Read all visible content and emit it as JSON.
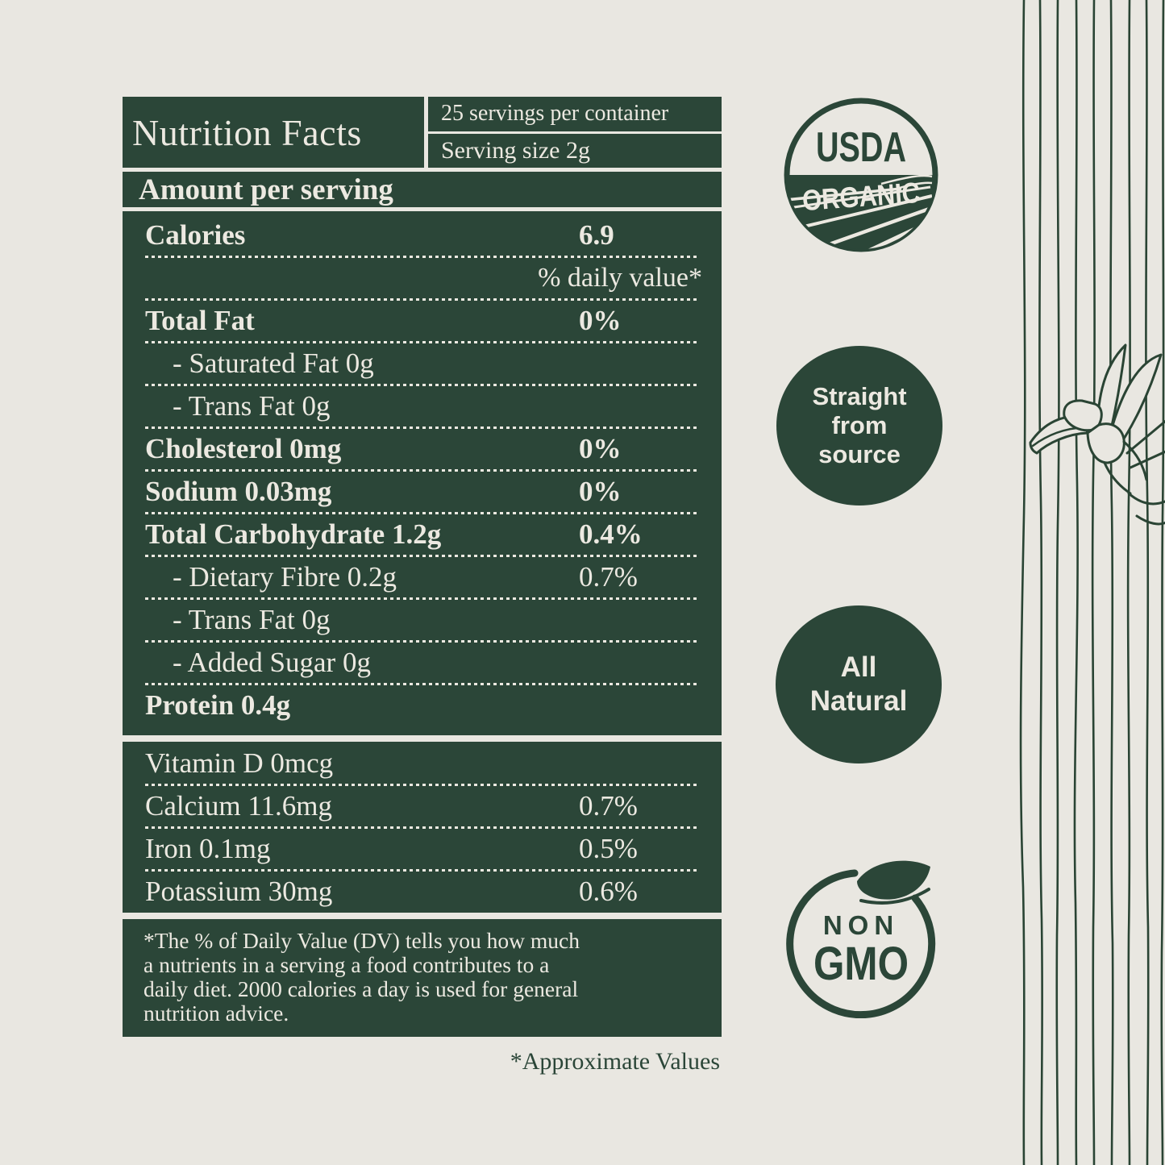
{
  "colors": {
    "panel_green": "#2b4638",
    "page_background": "#e9e7e1",
    "text_cream": "#ece9e1",
    "line_art": "#2a4434"
  },
  "panel": {
    "title": "Nutrition Facts",
    "servings_per_container": "25 servings per container",
    "serving_size": "Serving size 2g",
    "amount_per_serving": "Amount per serving",
    "calories_label": "Calories",
    "calories_value": "6.9",
    "daily_value_header": "% daily value*",
    "rows": [
      {
        "label": "Total Fat",
        "value": "0%",
        "bold": true
      },
      {
        "label": "- Saturated Fat 0g",
        "value": "",
        "indent": true
      },
      {
        "label": "- Trans Fat 0g",
        "value": "",
        "indent": true
      },
      {
        "label": "Cholesterol 0mg",
        "value": "0%",
        "bold": true
      },
      {
        "label": "Sodium 0.03mg",
        "value": "0%",
        "bold": true
      },
      {
        "label": "Total Carbohydrate 1.2g",
        "value": "0.4%",
        "bold": true
      },
      {
        "label": "- Dietary Fibre 0.2g",
        "value": "0.7%",
        "indent": true
      },
      {
        "label": "- Trans Fat 0g",
        "value": "",
        "indent": true
      },
      {
        "label": "- Added Sugar 0g",
        "value": "",
        "indent": true
      },
      {
        "label": "Protein 0.4g",
        "value": "",
        "bold": true
      }
    ],
    "vitamin_rows": [
      {
        "label": "Vitamin D 0mcg",
        "value": ""
      },
      {
        "label": "Calcium 11.6mg",
        "value": "0.7%"
      },
      {
        "label": "Iron 0.1mg",
        "value": "0.5%"
      },
      {
        "label": "Potassium 30mg",
        "value": "0.6%"
      }
    ],
    "footnote_lines": [
      "*The % of Daily Value (DV) tells you how much",
      "a nutrients in a serving a food contributes to a",
      "daily diet. 2000 calories a day is used for general",
      "nutrition advice."
    ],
    "approx_note": "*Approximate Values"
  },
  "badges": {
    "usda": {
      "line1": "USDA",
      "line2": "ORGANIC"
    },
    "source": {
      "lines": [
        "Straight",
        "from",
        "source"
      ]
    },
    "natural": {
      "lines": [
        "All",
        "Natural"
      ]
    },
    "nongmo": {
      "line1": "NON",
      "line2": "GMO"
    }
  }
}
